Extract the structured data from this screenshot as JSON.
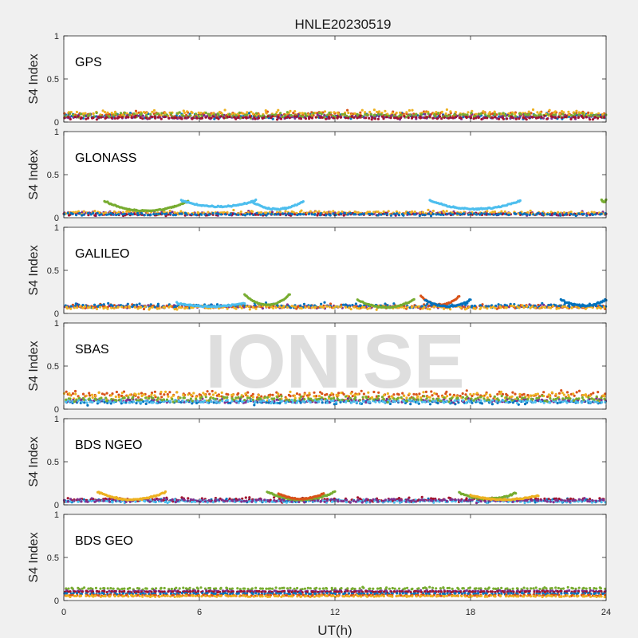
{
  "chart_data": {
    "type": "scatter",
    "title": "HNLE20230519",
    "watermark": "IONISE",
    "xlabel": "UT(h)",
    "ylabel": "S4 Index",
    "xlim": [
      0,
      24
    ],
    "ylim": [
      0,
      1
    ],
    "xticks": [
      "0",
      "6",
      "12",
      "18",
      "24"
    ],
    "yticks": [
      "0",
      "0.5",
      "1"
    ],
    "colors": [
      "#0072BD",
      "#D95319",
      "#EDB120",
      "#7E2F8E",
      "#77AC30",
      "#4DBEEE",
      "#A2142F"
    ],
    "panels": [
      {
        "label": "GPS",
        "series": [
          {
            "color": "#0072BD",
            "baseline": 0.07,
            "noise": 0.03
          },
          {
            "color": "#D95319",
            "baseline": 0.09,
            "noise": 0.035
          },
          {
            "color": "#EDB120",
            "baseline": 0.1,
            "noise": 0.035
          },
          {
            "color": "#7E2F8E",
            "baseline": 0.06,
            "noise": 0.025
          },
          {
            "color": "#77AC30",
            "baseline": 0.08,
            "noise": 0.03
          },
          {
            "color": "#A2142F",
            "baseline": 0.05,
            "noise": 0.02
          }
        ]
      },
      {
        "label": "GLONASS",
        "series": [
          {
            "color": "#7E2F8E",
            "baseline": 0.05,
            "noise": 0.02
          },
          {
            "color": "#A2142F",
            "baseline": 0.04,
            "noise": 0.015
          },
          {
            "color": "#EDB120",
            "baseline": 0.06,
            "noise": 0.02
          },
          {
            "color": "#0072BD",
            "baseline": 0.04,
            "noise": 0.015
          }
        ],
        "arcs": [
          {
            "color": "#77AC30",
            "x_start": 1.8,
            "x_end": 5.5,
            "y_peak": 0.19,
            "y_min": 0.08
          },
          {
            "color": "#4DBEEE",
            "x_start": 5.2,
            "x_end": 8.5,
            "y_peak": 0.2,
            "y_min": 0.13
          },
          {
            "color": "#4DBEEE",
            "x_start": 8.3,
            "x_end": 10.6,
            "y_peak": 0.19,
            "y_min": 0.1
          },
          {
            "color": "#4DBEEE",
            "x_start": 16.2,
            "x_end": 20.2,
            "y_peak": 0.2,
            "y_min": 0.1
          },
          {
            "color": "#77AC30",
            "x_start": 23.8,
            "x_end": 24,
            "y_peak": 0.21,
            "y_min": 0.18
          }
        ]
      },
      {
        "label": "GALILEO",
        "series": [
          {
            "color": "#7E2F8E",
            "baseline": 0.08,
            "noise": 0.02
          },
          {
            "color": "#D95319",
            "baseline": 0.08,
            "noise": 0.025
          },
          {
            "color": "#0072BD",
            "baseline": 0.09,
            "noise": 0.025
          },
          {
            "color": "#EDB120",
            "baseline": 0.07,
            "noise": 0.02
          }
        ],
        "arcs": [
          {
            "color": "#77AC30",
            "x_start": 8.0,
            "x_end": 10.0,
            "y_peak": 0.22,
            "y_min": 0.1
          },
          {
            "color": "#4DBEEE",
            "x_start": 5.0,
            "x_end": 8.0,
            "y_peak": 0.12,
            "y_min": 0.08
          },
          {
            "color": "#77AC30",
            "x_start": 13.0,
            "x_end": 15.5,
            "y_peak": 0.16,
            "y_min": 0.07
          },
          {
            "color": "#D95319",
            "x_start": 15.8,
            "x_end": 17.5,
            "y_peak": 0.2,
            "y_min": 0.1
          },
          {
            "color": "#0072BD",
            "x_start": 16.0,
            "x_end": 18.0,
            "y_peak": 0.16,
            "y_min": 0.08
          },
          {
            "color": "#0072BD",
            "x_start": 22.0,
            "x_end": 24.0,
            "y_peak": 0.16,
            "y_min": 0.09
          }
        ]
      },
      {
        "label": "SBAS",
        "series": [
          {
            "color": "#D95319",
            "baseline": 0.17,
            "noise": 0.04
          },
          {
            "color": "#EDB120",
            "baseline": 0.15,
            "noise": 0.05
          },
          {
            "color": "#0072BD",
            "baseline": 0.08,
            "noise": 0.025
          },
          {
            "color": "#7E2F8E",
            "baseline": 0.1,
            "noise": 0.025
          },
          {
            "color": "#4DBEEE",
            "baseline": 0.09,
            "noise": 0.02
          },
          {
            "color": "#77AC30",
            "baseline": 0.12,
            "noise": 0.03
          }
        ]
      },
      {
        "label": "BDS NGEO",
        "series": [
          {
            "color": "#0072BD",
            "baseline": 0.05,
            "noise": 0.02
          },
          {
            "color": "#A2142F",
            "baseline": 0.06,
            "noise": 0.025
          },
          {
            "color": "#4DBEEE",
            "baseline": 0.04,
            "noise": 0.015
          },
          {
            "color": "#7E2F8E",
            "baseline": 0.05,
            "noise": 0.02
          }
        ],
        "arcs": [
          {
            "color": "#EDB120",
            "x_start": 1.5,
            "x_end": 4.5,
            "y_peak": 0.15,
            "y_min": 0.06
          },
          {
            "color": "#77AC30",
            "x_start": 9.0,
            "x_end": 12.0,
            "y_peak": 0.15,
            "y_min": 0.06
          },
          {
            "color": "#D95319",
            "x_start": 9.5,
            "x_end": 11.5,
            "y_peak": 0.13,
            "y_min": 0.07
          },
          {
            "color": "#77AC30",
            "x_start": 17.5,
            "x_end": 20.0,
            "y_peak": 0.14,
            "y_min": 0.07
          },
          {
            "color": "#EDB120",
            "x_start": 18.0,
            "x_end": 21.0,
            "y_peak": 0.11,
            "y_min": 0.06
          }
        ]
      },
      {
        "label": "BDS GEO",
        "series": [
          {
            "color": "#77AC30",
            "baseline": 0.14,
            "noise": 0.012
          },
          {
            "color": "#7E2F8E",
            "baseline": 0.11,
            "noise": 0.008
          },
          {
            "color": "#A2142F",
            "baseline": 0.1,
            "noise": 0.008
          },
          {
            "color": "#0072BD",
            "baseline": 0.08,
            "noise": 0.008
          },
          {
            "color": "#D95319",
            "baseline": 0.06,
            "noise": 0.008
          },
          {
            "color": "#EDB120",
            "baseline": 0.05,
            "noise": 0.008
          }
        ]
      }
    ]
  }
}
